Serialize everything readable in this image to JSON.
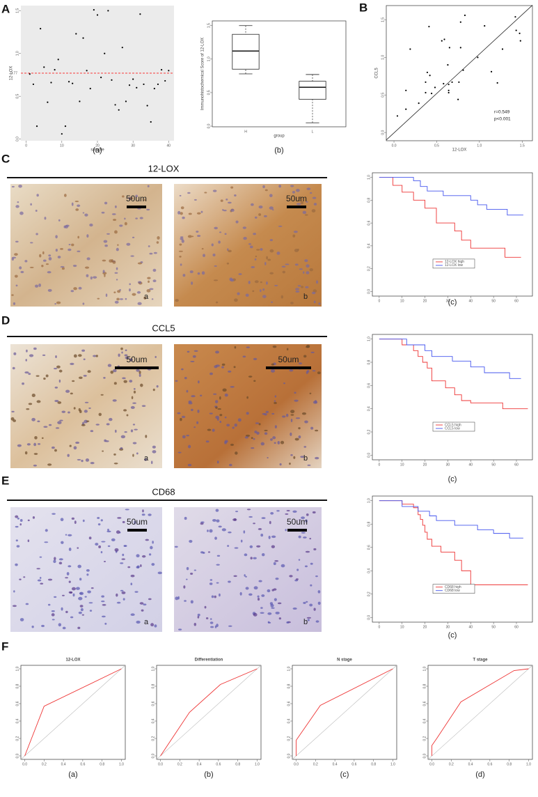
{
  "figure": {
    "panel_labels": [
      "A",
      "B",
      "C",
      "D",
      "E",
      "F"
    ],
    "sections": [
      {
        "title": "12-LOX",
        "images": [
          {
            "scale": "50um",
            "label": "a"
          },
          {
            "scale": "50um",
            "label": "b"
          }
        ]
      },
      {
        "title": "CCL5",
        "images": [
          {
            "scale": "50um",
            "label": "a"
          },
          {
            "scale": "50um",
            "label": "b"
          }
        ]
      },
      {
        "title": "CD68",
        "images": [
          {
            "scale": "50um",
            "label": "a"
          },
          {
            "scale": "50um",
            "label": "b"
          }
        ]
      }
    ]
  },
  "chart_data": [
    {
      "type": "scatter",
      "caption": "(a)",
      "x_label": "sample",
      "y_label": "12-LOX",
      "xlim": [
        -1.5,
        41.5
      ],
      "ylim": [
        -0.02,
        1.56
      ],
      "xticks": [
        0,
        10,
        20,
        30,
        40
      ],
      "yticks": [
        {
          "value": 0,
          "label": "0.0"
        },
        0.5,
        {
          "value": 1,
          "label": "1.0"
        },
        1.5
      ],
      "background": "#ebebeb",
      "color": "#000000",
      "reference_line": {
        "value": 0.77,
        "label": "0.77",
        "color": "#ff0000"
      },
      "x": [
        1,
        2,
        3,
        4,
        5,
        6,
        7,
        8,
        9,
        10,
        11,
        12,
        13,
        14,
        15,
        16,
        17,
        18,
        19,
        20,
        21,
        22,
        23,
        24,
        25,
        26,
        27,
        28,
        29,
        30,
        31,
        32,
        33,
        34,
        35,
        36,
        37,
        38,
        39,
        40
      ],
      "values": [
        0.76,
        0.64,
        0.15,
        1.29,
        0.84,
        0.43,
        0.66,
        0.81,
        0.93,
        0.06,
        0.15,
        0.67,
        0.65,
        1.23,
        0.44,
        1.18,
        0.8,
        0.59,
        1.51,
        1.45,
        0.72,
        1.0,
        1.5,
        0.69,
        0.4,
        0.34,
        1.07,
        0.44,
        0.63,
        0.7,
        0.6,
        1.46,
        0.64,
        0.39,
        0.2,
        0.59,
        0.64,
        0.81,
        0.68,
        0.8
      ]
    },
    {
      "type": "box",
      "caption": "(b)",
      "x_label": "group",
      "y_label": "Immunohistochemical Score of 12-LOX",
      "ylim": [
        -0.01,
        1.57
      ],
      "yticks": [
        {
          "value": 0,
          "label": "0.0"
        },
        0.5,
        {
          "value": 1,
          "label": "1.0"
        },
        1.5
      ],
      "categories": [
        "H",
        "L"
      ],
      "boxes": [
        {
          "min": 0.78,
          "q1": 0.85,
          "median": 1.12,
          "q3": 1.37,
          "max": 1.5
        },
        {
          "min": 0.05,
          "q1": 0.4,
          "median": 0.58,
          "q3": 0.67,
          "max": 0.77
        }
      ]
    },
    {
      "type": "scatter",
      "x_label": "12-LOX",
      "y_label": "CCL5",
      "xlim": [
        -0.09,
        1.62
      ],
      "ylim": [
        -0.11,
        1.69
      ],
      "xticks": [
        {
          "value": 0,
          "label": "0.0"
        },
        0.5,
        {
          "value": 1,
          "label": "1.0"
        },
        1.5
      ],
      "yticks": [
        {
          "value": 0,
          "label": "0.0"
        },
        0.5,
        {
          "value": 1,
          "label": "1.0"
        },
        1.5
      ],
      "background": "#ffffff",
      "color": "#000000",
      "fit": {
        "slope": 1.05,
        "intercept": -0.006
      },
      "annotations": [
        "r=0.549",
        "p<0.001"
      ],
      "annotation_color": "#ff3333",
      "x": [
        0.04,
        0.14,
        0.14,
        0.19,
        0.29,
        0.37,
        0.39,
        0.41,
        0.42,
        0.44,
        0.37,
        0.48,
        0.56,
        0.58,
        0.59,
        0.63,
        0.64,
        0.64,
        0.64,
        0.65,
        0.68,
        0.75,
        0.76,
        0.78,
        0.78,
        0.81,
        0.83,
        0.98,
        1.06,
        1.14,
        1.21,
        1.27,
        1.42,
        1.43,
        1.47,
        1.48
      ],
      "values": [
        0.22,
        0.31,
        0.56,
        1.11,
        0.39,
        0.67,
        0.8,
        1.41,
        0.76,
        0.52,
        0.53,
        0.6,
        1.22,
        0.65,
        1.24,
        0.9,
        0.64,
        0.56,
        0.53,
        1.13,
        0.67,
        0.44,
        0.67,
        1.13,
        1.47,
        0.83,
        1.56,
        1.0,
        1.42,
        0.81,
        0.66,
        1.11,
        1.54,
        1.36,
        1.32,
        1.22
      ]
    },
    {
      "type": "line",
      "step": true,
      "caption": "(c)",
      "legend": "lower center",
      "xlim": [
        -3,
        67
      ],
      "ylim": [
        -0.04,
        1.04
      ],
      "xticks": [
        0,
        10,
        20,
        30,
        40,
        50,
        60
      ],
      "yticks": [
        {
          "value": 0,
          "label": "0.0"
        },
        0.2,
        0.4,
        0.6,
        0.8,
        {
          "value": 1,
          "label": "1.0"
        }
      ],
      "series": [
        {
          "name": "12-LOX high",
          "color": "#ee3333",
          "x": [
            0,
            6,
            10,
            15,
            20,
            25,
            33,
            36,
            40,
            55,
            62
          ],
          "values": [
            1.0,
            0.93,
            0.87,
            0.8,
            0.73,
            0.6,
            0.53,
            0.45,
            0.38,
            0.3,
            0.3
          ]
        },
        {
          "name": "12-LOX low",
          "color": "#4455ee",
          "x": [
            0,
            15,
            18,
            21,
            28,
            40,
            43,
            47,
            56,
            63
          ],
          "values": [
            1.0,
            0.97,
            0.92,
            0.88,
            0.84,
            0.8,
            0.76,
            0.72,
            0.67,
            0.67
          ]
        }
      ]
    },
    {
      "type": "line",
      "step": true,
      "caption": "(c)",
      "legend": "lower center",
      "xlim": [
        -3,
        67
      ],
      "ylim": [
        -0.04,
        1.04
      ],
      "xticks": [
        0,
        10,
        20,
        30,
        40,
        50,
        60
      ],
      "yticks": [
        {
          "value": 0,
          "label": "0.0"
        },
        0.2,
        0.4,
        0.6,
        0.8,
        {
          "value": 1,
          "label": "1.0"
        }
      ],
      "series": [
        {
          "name": "CCL5 high",
          "color": "#ee3333",
          "x": [
            0,
            10,
            15,
            17,
            19,
            21,
            23,
            29,
            33,
            36,
            40,
            54,
            65
          ],
          "values": [
            1.0,
            0.95,
            0.9,
            0.85,
            0.8,
            0.75,
            0.64,
            0.58,
            0.52,
            0.47,
            0.45,
            0.4,
            0.4
          ]
        },
        {
          "name": "CCL5 low",
          "color": "#4455ee",
          "x": [
            0,
            12,
            20,
            23,
            32,
            40,
            46,
            57,
            62
          ],
          "values": [
            1.0,
            0.95,
            0.9,
            0.85,
            0.81,
            0.76,
            0.71,
            0.66,
            0.66
          ]
        }
      ]
    },
    {
      "type": "line",
      "step": true,
      "caption": "(c)",
      "legend": "lower center",
      "xlim": [
        -3,
        67
      ],
      "ylim": [
        -0.04,
        1.04
      ],
      "xticks": [
        0,
        10,
        20,
        30,
        40,
        50,
        60
      ],
      "yticks": [
        {
          "value": 0,
          "label": "0.0"
        },
        0.2,
        0.4,
        0.6,
        0.8,
        {
          "value": 1,
          "label": "1.0"
        }
      ],
      "series": [
        {
          "name": "CD68 high",
          "color": "#ee3333",
          "x": [
            0,
            10,
            15,
            17,
            18,
            19,
            20,
            21,
            23,
            27,
            33,
            36,
            40,
            65
          ],
          "values": [
            1.0,
            0.97,
            0.94,
            0.88,
            0.84,
            0.79,
            0.73,
            0.67,
            0.61,
            0.56,
            0.49,
            0.4,
            0.28,
            0.28
          ]
        },
        {
          "name": "CD68 low",
          "color": "#4455ee",
          "x": [
            0,
            10,
            17,
            22,
            25,
            33,
            43,
            50,
            57,
            63
          ],
          "values": [
            1.0,
            0.95,
            0.91,
            0.87,
            0.83,
            0.79,
            0.75,
            0.72,
            0.68,
            0.68
          ]
        }
      ]
    },
    {
      "type": "line",
      "title": "12-LOX",
      "caption": "(a)",
      "xlim": [
        -0.04,
        1.04
      ],
      "ylim": [
        -0.04,
        1.04
      ],
      "xticks": [
        {
          "value": 0,
          "label": "0.0"
        },
        0.2,
        0.4,
        0.6,
        0.8,
        {
          "value": 1,
          "label": "1.0"
        }
      ],
      "yticks": [
        {
          "value": 0,
          "label": "0.0"
        },
        0.2,
        0.4,
        0.6,
        0.8,
        {
          "value": 1,
          "label": "1.0"
        }
      ],
      "series": [
        {
          "color": "#ee3333",
          "x": [
            0,
            0.2,
            1
          ],
          "values": [
            0,
            0.57,
            1
          ]
        }
      ]
    },
    {
      "type": "line",
      "title": "Differentiation",
      "caption": "(b)",
      "xlim": [
        -0.04,
        1.04
      ],
      "ylim": [
        -0.04,
        1.04
      ],
      "xticks": [
        {
          "value": 0,
          "label": "0.0"
        },
        0.2,
        0.4,
        0.6,
        0.8,
        {
          "value": 1,
          "label": "1.0"
        }
      ],
      "yticks": [
        {
          "value": 0,
          "label": "0.0"
        },
        0.2,
        0.4,
        0.6,
        0.8,
        {
          "value": 1,
          "label": "1.0"
        }
      ],
      "series": [
        {
          "color": "#ee3333",
          "x": [
            0,
            0.3,
            0.62,
            1
          ],
          "values": [
            0,
            0.5,
            0.82,
            1
          ]
        }
      ]
    },
    {
      "type": "line",
      "title": "N stage",
      "caption": "(c)",
      "xlim": [
        -0.04,
        1.04
      ],
      "ylim": [
        -0.04,
        1.04
      ],
      "xticks": [
        {
          "value": 0,
          "label": "0.0"
        },
        0.2,
        0.4,
        0.6,
        0.8,
        {
          "value": 1,
          "label": "1.0"
        }
      ],
      "yticks": [
        {
          "value": 0,
          "label": "0.0"
        },
        0.2,
        0.4,
        0.6,
        0.8,
        {
          "value": 1,
          "label": "1.0"
        }
      ],
      "series": [
        {
          "color": "#ee3333",
          "x": [
            0,
            0,
            0.25,
            1
          ],
          "values": [
            0,
            0.18,
            0.58,
            1
          ]
        }
      ]
    },
    {
      "type": "line",
      "title": "T stage",
      "caption": "(d)",
      "xlim": [
        -0.04,
        1.04
      ],
      "ylim": [
        -0.04,
        1.04
      ],
      "xticks": [
        {
          "value": 0,
          "label": "0.0"
        },
        0.2,
        0.4,
        0.6,
        0.8,
        {
          "value": 1,
          "label": "1.0"
        }
      ],
      "yticks": [
        {
          "value": 0,
          "label": "0.0"
        },
        0.2,
        0.4,
        0.6,
        0.8,
        {
          "value": 1,
          "label": "1.0"
        }
      ],
      "series": [
        {
          "color": "#ee3333",
          "x": [
            0,
            0,
            0.05,
            0.3,
            0.85,
            1
          ],
          "values": [
            0,
            0.12,
            0.2,
            0.62,
            0.98,
            1
          ]
        }
      ]
    }
  ]
}
